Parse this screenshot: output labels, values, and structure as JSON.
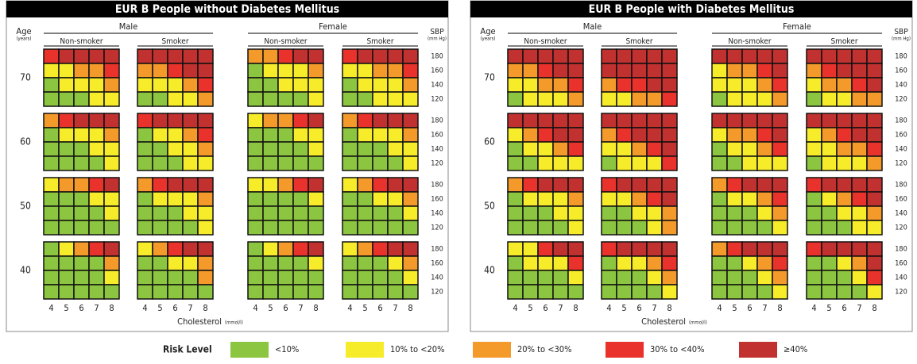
{
  "chart_data": {
    "type": "risk-grid",
    "age_label": "Age",
    "age_unit": "(years)",
    "sbp_label": "SBP",
    "sbp_unit": "(mm Hg)",
    "sex_labels": [
      "Male",
      "Female"
    ],
    "smoking_labels": [
      "Non-smoker",
      "Smoker"
    ],
    "ages": [
      70,
      60,
      50,
      40
    ],
    "sbp": [
      180,
      160,
      140,
      120
    ],
    "cholesterol": [
      4,
      5,
      6,
      7,
      8
    ],
    "x_label": "Cholesterol",
    "x_unit": "(mmol/l)",
    "legend_title": "Risk Level",
    "levels": [
      {
        "label": "<10%",
        "color": "#8cc540"
      },
      {
        "label": "10% to <20%",
        "color": "#f7ec2a"
      },
      {
        "label": "20% to <30%",
        "color": "#f39a2b"
      },
      {
        "label": "30% to <40%",
        "color": "#e8322b"
      },
      {
        "label": "≥40%",
        "color": "#c1312f"
      }
    ],
    "panels": [
      {
        "title": "EUR B People without Diabetes Mellitus",
        "risk": [
          [
            [
              [
                3,
                4,
                4,
                4,
                4
              ],
              [
                1,
                1,
                2,
                2,
                3
              ],
              [
                0,
                1,
                1,
                1,
                2
              ],
              [
                0,
                0,
                0,
                1,
                1
              ]
            ],
            [
              [
                4,
                4,
                4,
                4,
                4
              ],
              [
                2,
                2,
                3,
                4,
                4
              ],
              [
                1,
                1,
                1,
                2,
                3
              ],
              [
                0,
                0,
                1,
                1,
                2
              ]
            ],
            [
              [
                2,
                2,
                3,
                4,
                4
              ],
              [
                0,
                1,
                1,
                1,
                2
              ],
              [
                0,
                0,
                1,
                1,
                1
              ],
              [
                0,
                0,
                0,
                0,
                1
              ]
            ],
            [
              [
                3,
                4,
                4,
                4,
                4
              ],
              [
                1,
                1,
                2,
                2,
                3
              ],
              [
                0,
                1,
                1,
                1,
                2
              ],
              [
                0,
                0,
                1,
                1,
                1
              ]
            ]
          ],
          [
            [
              [
                2,
                3,
                4,
                4,
                4
              ],
              [
                0,
                1,
                1,
                1,
                2
              ],
              [
                0,
                0,
                0,
                1,
                1
              ],
              [
                0,
                0,
                0,
                0,
                1
              ]
            ],
            [
              [
                3,
                4,
                4,
                4,
                4
              ],
              [
                0,
                1,
                1,
                2,
                3
              ],
              [
                0,
                0,
                1,
                1,
                2
              ],
              [
                0,
                0,
                0,
                1,
                1
              ]
            ],
            [
              [
                1,
                2,
                2,
                3,
                4
              ],
              [
                0,
                0,
                0,
                1,
                1
              ],
              [
                0,
                0,
                0,
                0,
                1
              ],
              [
                0,
                0,
                0,
                0,
                0
              ]
            ],
            [
              [
                2,
                3,
                4,
                4,
                4
              ],
              [
                0,
                1,
                1,
                1,
                2
              ],
              [
                0,
                0,
                0,
                1,
                1
              ],
              [
                0,
                0,
                0,
                0,
                1
              ]
            ]
          ],
          [
            [
              [
                1,
                2,
                2,
                3,
                4
              ],
              [
                0,
                0,
                0,
                1,
                1
              ],
              [
                0,
                0,
                0,
                0,
                1
              ],
              [
                0,
                0,
                0,
                0,
                0
              ]
            ],
            [
              [
                2,
                3,
                4,
                4,
                4
              ],
              [
                0,
                1,
                1,
                1,
                2
              ],
              [
                0,
                0,
                0,
                1,
                1
              ],
              [
                0,
                0,
                0,
                0,
                1
              ]
            ],
            [
              [
                1,
                1,
                2,
                3,
                4
              ],
              [
                0,
                0,
                0,
                0,
                1
              ],
              [
                0,
                0,
                0,
                0,
                0
              ],
              [
                0,
                0,
                0,
                0,
                0
              ]
            ],
            [
              [
                1,
                2,
                3,
                4,
                4
              ],
              [
                0,
                0,
                1,
                1,
                2
              ],
              [
                0,
                0,
                0,
                0,
                1
              ],
              [
                0,
                0,
                0,
                0,
                0
              ]
            ]
          ],
          [
            [
              [
                0,
                1,
                2,
                3,
                4
              ],
              [
                0,
                0,
                0,
                0,
                2
              ],
              [
                0,
                0,
                0,
                0,
                1
              ],
              [
                0,
                0,
                0,
                0,
                0
              ]
            ],
            [
              [
                1,
                2,
                3,
                4,
                4
              ],
              [
                0,
                0,
                1,
                1,
                2
              ],
              [
                0,
                0,
                0,
                0,
                2
              ],
              [
                0,
                0,
                0,
                0,
                0
              ]
            ],
            [
              [
                0,
                1,
                2,
                3,
                4
              ],
              [
                0,
                0,
                0,
                0,
                1
              ],
              [
                0,
                0,
                0,
                0,
                0
              ],
              [
                0,
                0,
                0,
                0,
                0
              ]
            ],
            [
              [
                1,
                2,
                3,
                4,
                4
              ],
              [
                0,
                0,
                0,
                1,
                2
              ],
              [
                0,
                0,
                0,
                0,
                1
              ],
              [
                0,
                0,
                0,
                0,
                0
              ]
            ]
          ]
        ]
      },
      {
        "title": "EUR B People with Diabetes Mellitus",
        "risk": [
          [
            [
              [
                4,
                4,
                4,
                4,
                4
              ],
              [
                2,
                2,
                3,
                4,
                4
              ],
              [
                1,
                1,
                2,
                2,
                3
              ],
              [
                0,
                1,
                1,
                1,
                2
              ]
            ],
            [
              [
                4,
                4,
                4,
                4,
                4
              ],
              [
                4,
                4,
                4,
                4,
                4
              ],
              [
                2,
                3,
                3,
                4,
                4
              ],
              [
                1,
                1,
                2,
                2,
                3
              ]
            ],
            [
              [
                4,
                4,
                4,
                4,
                4
              ],
              [
                1,
                2,
                2,
                3,
                4
              ],
              [
                1,
                1,
                1,
                2,
                3
              ],
              [
                0,
                1,
                1,
                1,
                2
              ]
            ],
            [
              [
                4,
                4,
                4,
                4,
                4
              ],
              [
                2,
                3,
                4,
                4,
                4
              ],
              [
                1,
                2,
                2,
                3,
                4
              ],
              [
                0,
                1,
                1,
                2,
                2
              ]
            ]
          ],
          [
            [
              [
                4,
                4,
                4,
                4,
                4
              ],
              [
                1,
                2,
                3,
                4,
                4
              ],
              [
                0,
                1,
                1,
                2,
                3
              ],
              [
                0,
                0,
                1,
                1,
                1
              ]
            ],
            [
              [
                4,
                4,
                4,
                4,
                4
              ],
              [
                2,
                3,
                4,
                4,
                4
              ],
              [
                1,
                1,
                2,
                3,
                4
              ],
              [
                0,
                1,
                1,
                1,
                3
              ]
            ],
            [
              [
                4,
                4,
                4,
                4,
                4
              ],
              [
                1,
                2,
                2,
                3,
                4
              ],
              [
                0,
                1,
                1,
                2,
                3
              ],
              [
                0,
                0,
                1,
                1,
                1
              ]
            ],
            [
              [
                4,
                4,
                4,
                4,
                4
              ],
              [
                1,
                2,
                3,
                4,
                4
              ],
              [
                1,
                1,
                2,
                2,
                3
              ],
              [
                0,
                1,
                1,
                1,
                2
              ]
            ]
          ],
          [
            [
              [
                2,
                3,
                4,
                4,
                4
              ],
              [
                0,
                1,
                1,
                1,
                2
              ],
              [
                0,
                0,
                0,
                1,
                1
              ],
              [
                0,
                0,
                0,
                0,
                1
              ]
            ],
            [
              [
                3,
                4,
                4,
                4,
                4
              ],
              [
                1,
                1,
                2,
                3,
                4
              ],
              [
                0,
                0,
                1,
                1,
                2
              ],
              [
                0,
                0,
                0,
                1,
                2
              ]
            ],
            [
              [
                2,
                3,
                4,
                4,
                4
              ],
              [
                0,
                1,
                1,
                2,
                3
              ],
              [
                0,
                0,
                0,
                1,
                2
              ],
              [
                0,
                0,
                0,
                0,
                1
              ]
            ],
            [
              [
                3,
                4,
                4,
                4,
                4
              ],
              [
                0,
                1,
                2,
                3,
                4
              ],
              [
                0,
                0,
                1,
                1,
                2
              ],
              [
                0,
                0,
                0,
                1,
                1
              ]
            ]
          ],
          [
            [
              [
                1,
                1,
                3,
                4,
                4
              ],
              [
                0,
                1,
                1,
                1,
                3
              ],
              [
                0,
                0,
                0,
                0,
                1
              ],
              [
                0,
                0,
                0,
                0,
                0
              ]
            ],
            [
              [
                3,
                4,
                4,
                4,
                4
              ],
              [
                0,
                1,
                1,
                2,
                3
              ],
              [
                0,
                0,
                0,
                1,
                2
              ],
              [
                0,
                0,
                0,
                0,
                1
              ]
            ],
            [
              [
                2,
                3,
                4,
                4,
                4
              ],
              [
                0,
                0,
                1,
                2,
                3
              ],
              [
                0,
                0,
                0,
                1,
                2
              ],
              [
                0,
                0,
                0,
                0,
                1
              ]
            ],
            [
              [
                3,
                4,
                4,
                4,
                4
              ],
              [
                0,
                0,
                1,
                2,
                4
              ],
              [
                0,
                0,
                0,
                1,
                3
              ],
              [
                0,
                0,
                0,
                0,
                1
              ]
            ]
          ]
        ]
      }
    ]
  }
}
